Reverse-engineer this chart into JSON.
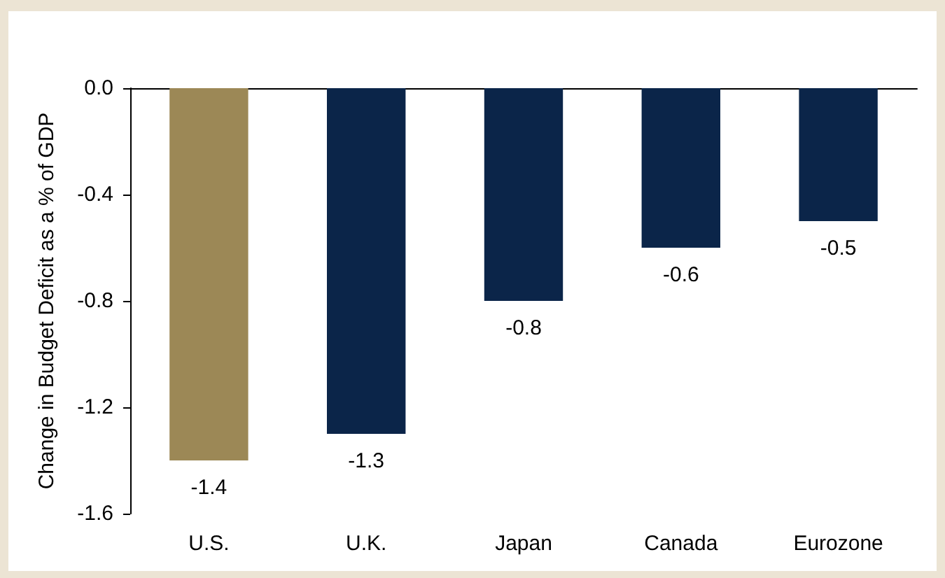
{
  "chart_data": {
    "type": "bar",
    "ylabel": "Change in Budget Deficit as a % of GDP",
    "categories": [
      "U.S.",
      "U.K.",
      "Japan",
      "Canada",
      "Eurozone"
    ],
    "values": [
      -1.4,
      -1.3,
      -0.8,
      -0.6,
      -0.5
    ],
    "colors": [
      "#9c8856",
      "#0b2549",
      "#0b2549",
      "#0b2549",
      "#0b2549"
    ],
    "ylim": [
      -1.6,
      0
    ],
    "yticks": [
      {
        "value": 0,
        "label": "0.0"
      },
      -0.4,
      -0.8,
      -1.2,
      -1.6
    ],
    "data_labels": true,
    "grid": false
  }
}
